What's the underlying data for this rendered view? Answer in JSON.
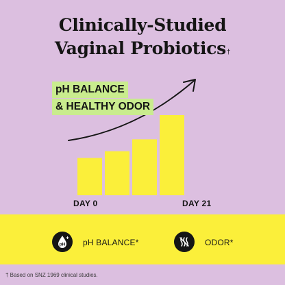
{
  "headline": {
    "line1": "Clinically-Studied",
    "line2": "Vaginal Probiotics",
    "footnote_mark": "†"
  },
  "tags": {
    "line1": "pH BALANCE",
    "line2": "& HEALTHY ODOR"
  },
  "chart_data": {
    "type": "bar",
    "categories": [
      "DAY 0",
      "",
      "",
      "DAY 21"
    ],
    "values": [
      1,
      1.18,
      1.5,
      2.15
    ],
    "xlabel": "",
    "ylabel": "",
    "bar_color": "#fbef3a",
    "trend_arrow": true
  },
  "axis": {
    "start": "DAY 0",
    "end": "DAY 21"
  },
  "band": {
    "color": "#fbef3a",
    "benefits": [
      {
        "icon": "ph-drop-icon",
        "icon_text": "pH",
        "label": "pH BALANCE*"
      },
      {
        "icon": "no-odor-icon",
        "label": "ODOR*"
      }
    ]
  },
  "footnote": "† Based on SNZ 1969 clinical studies.",
  "colors": {
    "background": "#dcbfe0",
    "tag_highlight": "#c9ec8e",
    "bars": "#fbef3a",
    "ink": "#151515"
  }
}
